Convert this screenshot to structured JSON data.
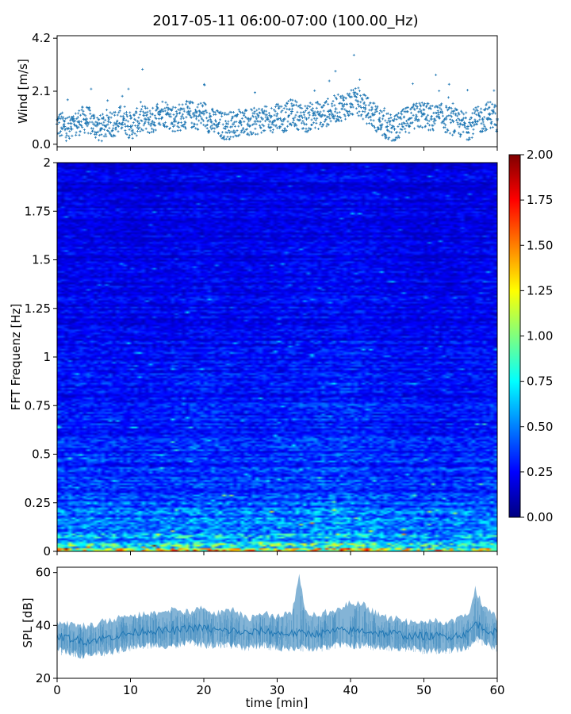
{
  "figure": {
    "title": "2017-05-11 06:00-07:00 (100.00_Hz)"
  },
  "colors": {
    "wind_marker": "#1f77b4",
    "spl_line": "#1f77b4",
    "colormap": "jet"
  },
  "chart_data": [
    {
      "type": "scatter",
      "panel": "wind",
      "ylabel": "Wind [m/s]",
      "xlim": [
        0,
        60
      ],
      "ylim": [
        -0.1,
        4.3
      ],
      "yticks": [
        "0.0",
        "2.1",
        "4.2"
      ],
      "xticks": [
        "0",
        "10",
        "20",
        "30",
        "40",
        "50",
        "60"
      ],
      "marker": "+",
      "series": [
        {
          "x": [
            0,
            1,
            2,
            3,
            4,
            5,
            6,
            7,
            8,
            9,
            10,
            11,
            12,
            13,
            14,
            15,
            16,
            17,
            18,
            19,
            20,
            21,
            22,
            23,
            24,
            25,
            26,
            27,
            28,
            29,
            30,
            31,
            32,
            33,
            34,
            35,
            36,
            37,
            38,
            39,
            40,
            41,
            42,
            43,
            44,
            45,
            46,
            47,
            48,
            49,
            50,
            51,
            52,
            53,
            54,
            55,
            56,
            57,
            58,
            59,
            60
          ],
          "y": [
            0.8,
            0.7,
            0.6,
            0.9,
            1.0,
            0.8,
            0.6,
            0.9,
            0.8,
            1.1,
            0.7,
            0.9,
            1.0,
            0.9,
            1.3,
            1.2,
            1.0,
            1.1,
            1.2,
            1.1,
            1.2,
            0.9,
            0.8,
            0.7,
            0.8,
            0.9,
            0.8,
            0.9,
            1.0,
            0.9,
            1.2,
            1.0,
            1.3,
            1.1,
            1.0,
            1.2,
            1.1,
            1.3,
            1.4,
            1.5,
            1.6,
            1.7,
            1.4,
            1.2,
            0.9,
            0.7,
            0.6,
            0.8,
            1.0,
            1.1,
            1.2,
            1.0,
            1.1,
            1.0,
            0.9,
            0.8,
            0.7,
            0.9,
            1.0,
            1.2,
            1.0
          ]
        }
      ]
    },
    {
      "type": "heatmap",
      "panel": "spectrogram",
      "ylabel": "FFT Frequenz [Hz]",
      "xlim": [
        0,
        60
      ],
      "ylim": [
        0,
        2
      ],
      "yticks": [
        "0",
        "0.25",
        "0.5",
        "0.75",
        "1",
        "1.25",
        "1.5",
        "1.75",
        "2"
      ],
      "colorbar": {
        "vmin": 0.0,
        "vmax": 2.0,
        "ticks": [
          "0.00",
          "0.25",
          "0.50",
          "0.75",
          "1.00",
          "1.25",
          "1.50",
          "1.75",
          "2.00"
        ]
      },
      "frequency_profile": {
        "frequency_hz": [
          0.0,
          0.02,
          0.05,
          0.1,
          0.2,
          0.3,
          0.5,
          0.75,
          1.0,
          1.25,
          1.5,
          1.75,
          2.0
        ],
        "typical_value": [
          1.6,
          0.9,
          0.65,
          0.5,
          0.42,
          0.36,
          0.3,
          0.27,
          0.24,
          0.22,
          0.21,
          0.2,
          0.19
        ]
      },
      "time_profile": {
        "time_min": [
          0,
          5,
          10,
          15,
          20,
          25,
          30,
          35,
          40,
          45,
          50,
          55,
          60
        ],
        "relative_intensity": [
          1.0,
          1.05,
          0.95,
          1.0,
          1.1,
          1.0,
          1.05,
          1.1,
          1.15,
          1.0,
          0.95,
          1.0,
          1.05
        ]
      }
    },
    {
      "type": "area",
      "panel": "spl",
      "ylabel": "SPL [dB]",
      "xlabel": "time [min]",
      "xlim": [
        0,
        60
      ],
      "ylim": [
        20,
        62
      ],
      "yticks": [
        "20",
        "40",
        "60"
      ],
      "xticks": [
        "0",
        "10",
        "20",
        "30",
        "40",
        "50",
        "60"
      ],
      "series": [
        {
          "x": [
            0,
            2,
            4,
            6,
            8,
            10,
            12,
            14,
            16,
            18,
            20,
            22,
            24,
            26,
            28,
            30,
            32,
            33,
            34,
            36,
            38,
            40,
            42,
            44,
            46,
            48,
            50,
            52,
            54,
            56,
            57,
            58,
            60
          ],
          "y_mean": [
            36,
            35,
            34,
            35,
            36,
            37,
            38,
            38,
            38,
            39,
            39,
            38,
            38,
            37,
            38,
            37,
            37,
            37,
            37,
            37,
            38,
            38,
            38,
            37,
            37,
            36,
            36,
            36,
            36,
            37,
            41,
            39,
            37
          ],
          "y_low": [
            29,
            28,
            27,
            28,
            29,
            30,
            31,
            31,
            31,
            32,
            31,
            31,
            31,
            30,
            31,
            30,
            30,
            30,
            30,
            30,
            31,
            31,
            31,
            30,
            30,
            30,
            29,
            29,
            29,
            30,
            34,
            32,
            30
          ],
          "y_high": [
            43,
            42,
            41,
            43,
            44,
            45,
            46,
            46,
            48,
            46,
            48,
            46,
            47,
            44,
            46,
            45,
            46,
            60,
            46,
            46,
            47,
            50,
            49,
            45,
            44,
            43,
            43,
            43,
            43,
            45,
            55,
            49,
            44
          ]
        }
      ]
    }
  ]
}
